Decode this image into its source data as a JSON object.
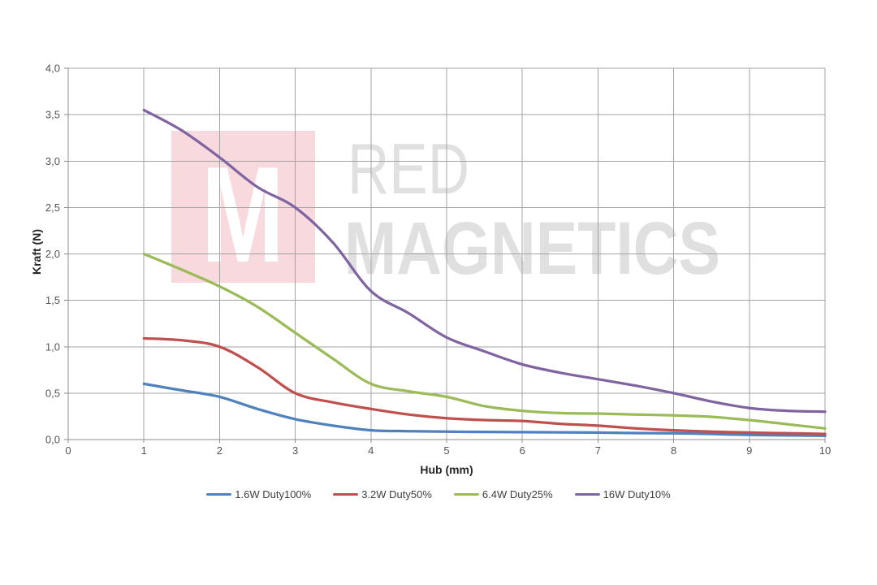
{
  "watermark": {
    "monogram": "M",
    "line1": "RED",
    "line2": "MAGNETICS",
    "square_color": "#f7d9de",
    "monogram_color": "#ffffff",
    "text_color": "#e0e0e0"
  },
  "chart_data": {
    "type": "line",
    "title": "",
    "xlabel": "Hub (mm)",
    "ylabel": "Kraft (N)",
    "xlim": [
      0,
      10
    ],
    "ylim": [
      0,
      4
    ],
    "grid": true,
    "legend_position": "bottom",
    "x_ticks": [
      0,
      1,
      2,
      3,
      4,
      5,
      6,
      7,
      8,
      9,
      10
    ],
    "x_tick_labels": [
      "0",
      "1",
      "2",
      "3",
      "4",
      "5",
      "6",
      "7",
      "8",
      "9",
      "10"
    ],
    "y_ticks": [
      0,
      0.5,
      1,
      1.5,
      2,
      2.5,
      3,
      3.5,
      4
    ],
    "y_tick_labels": [
      "0,0",
      "0,5",
      "1,0",
      "1,5",
      "2,0",
      "2,5",
      "3,0",
      "3,5",
      "4,0"
    ],
    "x": [
      1,
      1.5,
      2,
      2.5,
      3,
      3.5,
      4,
      4.5,
      5,
      5.5,
      6,
      6.5,
      7,
      7.5,
      8,
      8.5,
      9,
      9.5,
      10
    ],
    "series": [
      {
        "name": "1.6W Duty100%",
        "color": "#4F81BD",
        "values": [
          0.6,
          0.53,
          0.46,
          0.33,
          0.22,
          0.15,
          0.1,
          0.09,
          0.085,
          0.082,
          0.08,
          0.078,
          0.075,
          0.07,
          0.068,
          0.06,
          0.05,
          0.045,
          0.04
        ]
      },
      {
        "name": "3.2W Duty50%",
        "color": "#C0504D",
        "values": [
          1.09,
          1.07,
          1.0,
          0.78,
          0.5,
          0.4,
          0.33,
          0.27,
          0.23,
          0.21,
          0.2,
          0.17,
          0.15,
          0.12,
          0.1,
          0.085,
          0.075,
          0.068,
          0.06
        ]
      },
      {
        "name": "6.4W Duty25%",
        "color": "#9BBB59",
        "values": [
          2.0,
          1.83,
          1.65,
          1.43,
          1.15,
          0.87,
          0.6,
          0.52,
          0.46,
          0.36,
          0.31,
          0.285,
          0.28,
          0.27,
          0.26,
          0.245,
          0.21,
          0.165,
          0.12
        ]
      },
      {
        "name": "16W Duty10%",
        "color": "#8064A2",
        "values": [
          3.55,
          3.33,
          3.04,
          2.72,
          2.5,
          2.12,
          1.6,
          1.36,
          1.1,
          0.95,
          0.81,
          0.72,
          0.65,
          0.58,
          0.5,
          0.41,
          0.34,
          0.31,
          0.3
        ]
      }
    ],
    "colors": {
      "grid": "#a3a3a3",
      "axis": "#8c8c8c",
      "tick_label": "#545454",
      "axis_title": "#262626",
      "legend_text": "#3f3f3f"
    }
  }
}
